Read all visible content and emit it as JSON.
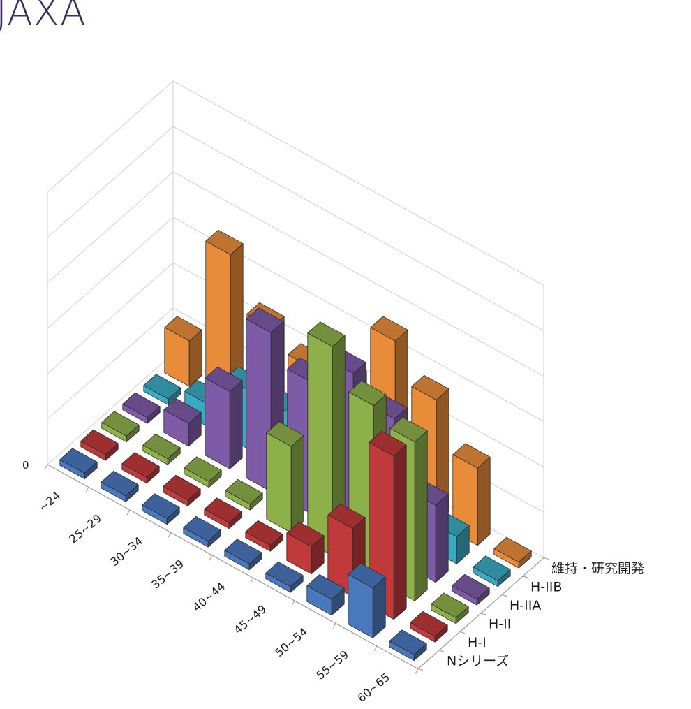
{
  "header": {
    "title": "JAXA"
  },
  "chart_data": {
    "type": "bar3d",
    "title": "",
    "xlabel": "",
    "ylabel": "",
    "categories": [
      "~24",
      "25~29",
      "30~34",
      "35~39",
      "40~44",
      "45~49",
      "50~54",
      "55~59",
      "60~65"
    ],
    "y_tick_labels": [
      "0"
    ],
    "ylim": [
      0,
      6
    ],
    "grid": true,
    "legend": "none",
    "series": [
      {
        "name": "Nシリーズ",
        "color": "#4a78bd",
        "values": [
          0,
          0,
          0,
          0,
          0,
          0,
          0.35,
          1.1,
          0
        ]
      },
      {
        "name": "H-I",
        "color": "#c0393b",
        "values": [
          0,
          0,
          0,
          0,
          0,
          0.6,
          1.5,
          3.6,
          0
        ]
      },
      {
        "name": "H-II",
        "color": "#8db04a",
        "values": [
          0,
          0,
          0,
          0,
          1.9,
          4.6,
          3.8,
          3.5,
          0
        ]
      },
      {
        "name": "H-IIA",
        "color": "#7d5ba6",
        "values": [
          0,
          0.5,
          1.7,
          3.5,
          2.9,
          3.6,
          3.1,
          1.7,
          0
        ]
      },
      {
        "name": "H-IIB",
        "color": "#3aa9c2",
        "values": [
          0,
          0.5,
          1.3,
          1.3,
          1.1,
          0.9,
          0.8,
          0.6,
          0
        ]
      },
      {
        "name": "維持・研究開発",
        "color": "#e88c3a",
        "values": [
          1.0,
          3.4,
          2.3,
          1.9,
          2.1,
          3.5,
          2.7,
          1.7,
          0
        ]
      }
    ]
  }
}
